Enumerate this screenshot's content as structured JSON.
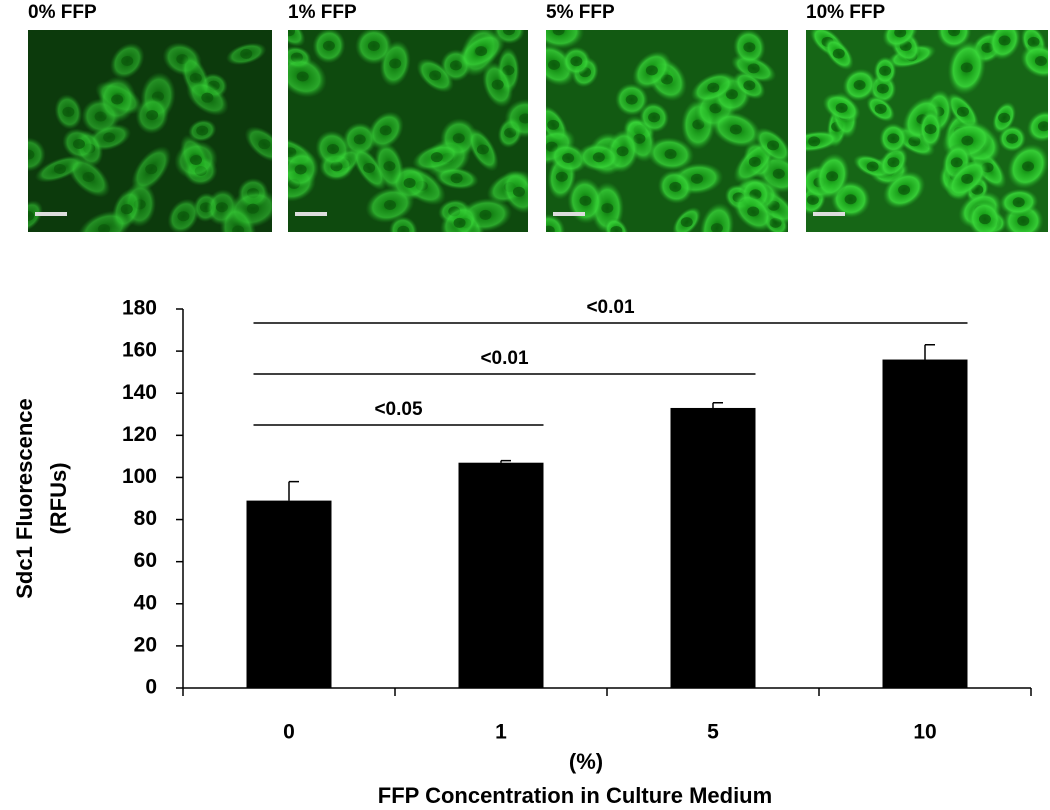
{
  "panels": [
    {
      "label": "0% FFP"
    },
    {
      "label": "1% FFP"
    },
    {
      "label": "5% FFP"
    },
    {
      "label": "10% FFP"
    }
  ],
  "chart_data": {
    "type": "bar",
    "ylabel": [
      "Sdc1 Fluorescence",
      "(RFUs)"
    ],
    "xlabel": [
      "(%)",
      "FFP Concentration in Culture Medium"
    ],
    "categories": [
      "0",
      "1",
      "5",
      "10"
    ],
    "values": [
      89,
      107,
      133,
      156
    ],
    "errors": [
      9,
      1,
      2.5,
      7
    ],
    "color": "#000000",
    "ylim": [
      0,
      180
    ],
    "yticks": [
      0,
      20,
      40,
      60,
      80,
      100,
      120,
      140,
      160,
      180
    ],
    "annotations": [
      {
        "label": "<0.05",
        "from": 0,
        "to": 1
      },
      {
        "label": "<0.01",
        "from": 0,
        "to": 2
      },
      {
        "label": "<0.01",
        "from": 0,
        "to": 3
      }
    ]
  }
}
